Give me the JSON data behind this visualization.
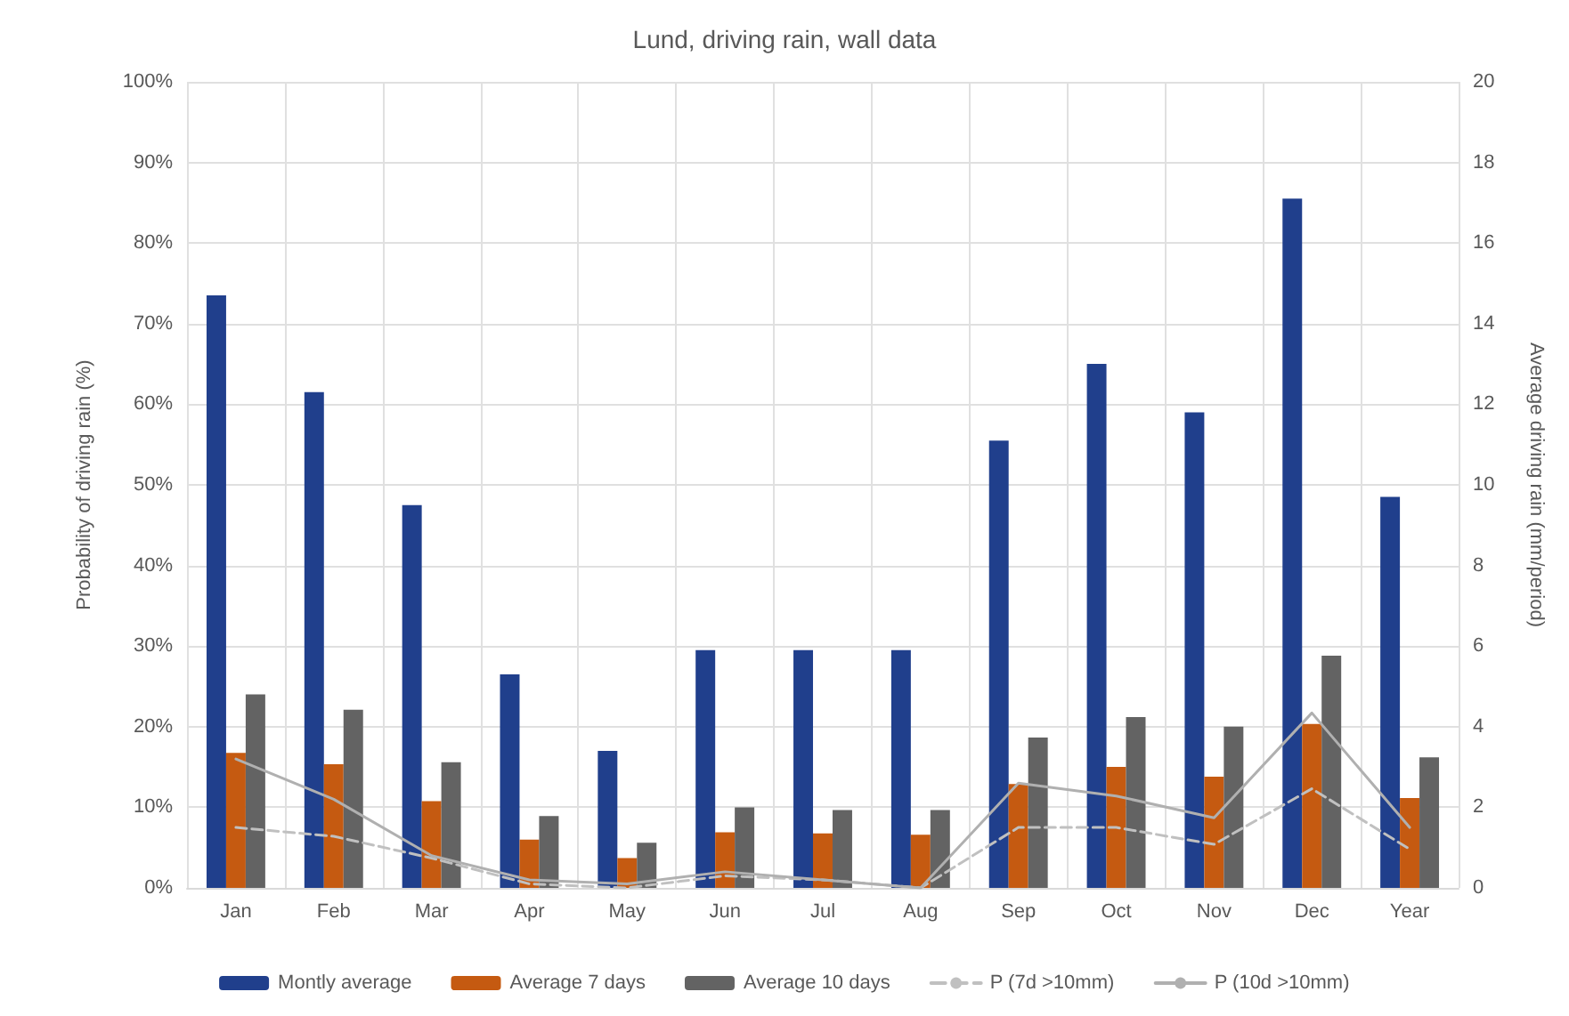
{
  "chart_data": {
    "type": "bar",
    "title": "Lund, driving rain, wall data",
    "ylabel": "Probability of driving rain (%)",
    "y2label": "Average driving rain (mm/period)",
    "categories": [
      "Jan",
      "Feb",
      "Mar",
      "Apr",
      "May",
      "Jun",
      "Jul",
      "Aug",
      "Sep",
      "Oct",
      "Nov",
      "Dec",
      "Year"
    ],
    "series": [
      {
        "name": "Montly average",
        "axis": "y2",
        "color": "#203f8c",
        "values": [
          14.7,
          12.3,
          9.5,
          5.3,
          3.4,
          5.9,
          5.9,
          5.9,
          11.1,
          13.0,
          11.8,
          17.1,
          9.7
        ]
      },
      {
        "name": "Average 7 days",
        "axis": "y2",
        "color": "#c55a11",
        "values": [
          3.35,
          3.07,
          2.15,
          1.2,
          0.74,
          1.38,
          1.35,
          1.32,
          2.58,
          3.0,
          2.76,
          4.07,
          2.23
        ]
      },
      {
        "name": "Average 10 days",
        "axis": "y2",
        "color": "#636363",
        "values": [
          4.8,
          4.42,
          3.12,
          1.78,
          1.12,
          2.0,
          1.93,
          1.93,
          3.73,
          4.24,
          4.0,
          5.76,
          3.24
        ]
      },
      {
        "name": "P (7d >10mm)",
        "type": "line",
        "color": "#c0c0c0",
        "line_style": "dashed",
        "values": [
          7.5,
          6.4,
          3.7,
          0.5,
          0,
          1.5,
          1,
          0,
          7.5,
          7.5,
          5.4,
          12.3,
          4.8
        ]
      },
      {
        "name": "P (10d >10mm)",
        "type": "line",
        "color": "#b0b0b0",
        "line_style": "solid",
        "values": [
          16,
          11,
          4,
          1,
          0.5,
          2,
          1,
          0,
          13,
          11.4,
          8.7,
          21.7,
          7.5
        ]
      }
    ],
    "ylim": [
      0,
      100
    ],
    "yticks": [
      {
        "value": 0,
        "label": "0%"
      },
      {
        "value": 10,
        "label": "10%"
      },
      {
        "value": 20,
        "label": "20%"
      },
      {
        "value": 30,
        "label": "30%"
      },
      {
        "value": 40,
        "label": "40%"
      },
      {
        "value": 50,
        "label": "50%"
      },
      {
        "value": 60,
        "label": "60%"
      },
      {
        "value": 70,
        "label": "70%"
      },
      {
        "value": 80,
        "label": "80%"
      },
      {
        "value": 90,
        "label": "90%"
      },
      {
        "value": 100,
        "label": "100%"
      }
    ],
    "y2lim": [
      0,
      20
    ],
    "y2ticks": [
      0,
      2,
      4,
      6,
      8,
      10,
      12,
      14,
      16,
      18,
      20
    ],
    "grid": true,
    "legend": "bottom",
    "marker": "none"
  }
}
